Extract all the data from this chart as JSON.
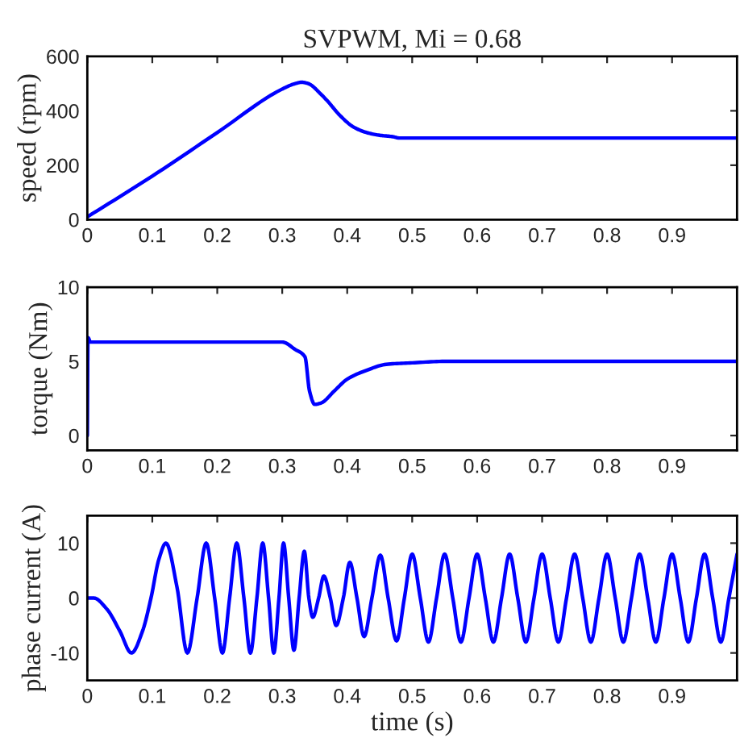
{
  "chart_data": [
    {
      "type": "line",
      "title": "SVPWM, Mi = 0.68",
      "ylabel": "speed (rpm)",
      "xlim": [
        0,
        1
      ],
      "xticks": [
        0,
        0.1,
        0.2,
        0.3,
        0.4,
        0.5,
        0.6,
        0.7,
        0.8,
        0.9
      ],
      "ylim": [
        0,
        600
      ],
      "yticks": [
        0,
        200,
        400,
        600
      ],
      "grid": false,
      "legend": false,
      "series": [
        {
          "color": "#0000ff",
          "x": [
            0,
            0.1,
            0.2,
            0.3,
            0.32,
            0.33,
            0.34,
            0.36,
            0.37,
            0.39,
            0.41,
            0.43,
            0.45,
            0.47,
            0.48,
            0.6,
            0.8,
            1.0
          ],
          "values": [
            10,
            160,
            320,
            480,
            500,
            505,
            500,
            460,
            435,
            380,
            340,
            320,
            310,
            305,
            300,
            300,
            300,
            300
          ]
        }
      ]
    },
    {
      "type": "line",
      "ylabel": "torque (Nm)",
      "xlim": [
        0,
        1
      ],
      "xticks": [
        0,
        0.1,
        0.2,
        0.3,
        0.4,
        0.5,
        0.6,
        0.7,
        0.8,
        0.9
      ],
      "ylim": [
        -1,
        10
      ],
      "yticks": [
        0,
        5,
        10
      ],
      "grid": false,
      "legend": false,
      "series": [
        {
          "color": "#0000ff",
          "x": [
            0,
            0.001,
            0.005,
            0.1,
            0.2,
            0.3,
            0.32,
            0.335,
            0.342,
            0.35,
            0.36,
            0.38,
            0.4,
            0.43,
            0.46,
            0.5,
            0.55,
            0.7,
            1.0
          ],
          "values": [
            0,
            6.6,
            6.3,
            6.3,
            6.3,
            6.3,
            5.8,
            5.3,
            3,
            2.1,
            2.2,
            3,
            3.8,
            4.4,
            4.8,
            4.9,
            5,
            5,
            5
          ]
        }
      ]
    },
    {
      "type": "line",
      "xlabel": "time (s)",
      "ylabel": "phase current (A)",
      "xlim": [
        0,
        1
      ],
      "xticks": [
        0,
        0.1,
        0.2,
        0.3,
        0.4,
        0.5,
        0.6,
        0.7,
        0.8,
        0.9
      ],
      "ylim": [
        -15,
        15
      ],
      "yticks": [
        -10,
        0,
        10
      ],
      "grid": false,
      "legend": false,
      "series": [
        {
          "color": "#0000ff",
          "x": [
            0,
            0.01,
            0.03,
            0.05,
            0.068,
            0.085,
            0.098,
            0.11,
            0.121,
            0.138,
            0.154,
            0.169,
            0.183,
            0.196,
            0.208,
            0.219,
            0.23,
            0.241,
            0.251,
            0.261,
            0.27,
            0.279,
            0.287,
            0.295,
            0.302,
            0.31,
            0.318,
            0.326,
            0.334,
            0.341,
            0.347,
            0.356,
            0.364,
            0.374,
            0.383,
            0.394,
            0.404,
            0.415,
            0.426,
            0.438,
            0.451,
            0.463,
            0.476,
            0.488,
            0.5,
            0.5125,
            0.525,
            0.5375,
            0.55,
            0.5625,
            0.575,
            0.5875,
            0.6,
            0.6125,
            0.625,
            0.6375,
            0.65,
            0.6625,
            0.675,
            0.6875,
            0.7,
            0.7125,
            0.725,
            0.7375,
            0.75,
            0.7625,
            0.775,
            0.7875,
            0.8,
            0.8125,
            0.825,
            0.8375,
            0.85,
            0.8625,
            0.875,
            0.8875,
            0.9,
            0.9125,
            0.925,
            0.9375,
            0.95,
            0.9625,
            0.975,
            0.9875,
            1.0
          ],
          "values": [
            0,
            0,
            -2,
            -6,
            -10,
            -6,
            0,
            7,
            10,
            2,
            -10,
            0,
            10,
            0,
            -10,
            0,
            10,
            0,
            -10,
            0,
            10,
            0,
            -10,
            0,
            10,
            0,
            -9.5,
            0,
            8.5,
            0,
            -3.5,
            0,
            4,
            0,
            -5,
            0,
            6.5,
            0,
            -7,
            0,
            7.8,
            0,
            -7.8,
            0,
            8,
            0,
            -8,
            0,
            8,
            0,
            -8,
            0,
            8,
            0,
            -8,
            0,
            8,
            0,
            -8,
            0,
            8,
            0,
            -8,
            0,
            8,
            0,
            -8,
            0,
            8,
            0,
            -8,
            0,
            8,
            0,
            -8,
            0,
            8,
            0,
            -8,
            0,
            8,
            0,
            -8,
            0,
            8
          ]
        }
      ]
    }
  ]
}
